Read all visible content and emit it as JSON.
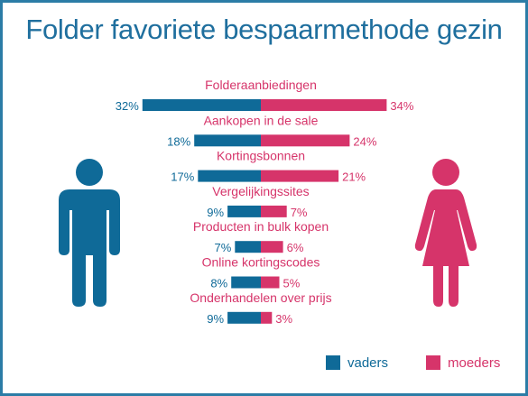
{
  "title": "Folder favoriete bespaarmethode gezin",
  "colors": {
    "vaders": "#0f6a98",
    "moeders": "#d6346a",
    "border": "#2b7ca6",
    "title": "#1f6f9e"
  },
  "chart_data": {
    "type": "bar",
    "title": "Folder favoriete bespaarmethode gezin",
    "categories": [
      "Folderaanbiedingen",
      "Aankopen in de sale",
      "Kortingsbonnen",
      "Vergelijkingssites",
      "Producten in bulk kopen",
      "Online kortingscodes",
      "Onderhandelen over prijs"
    ],
    "series": [
      {
        "name": "vaders",
        "values": [
          32,
          18,
          17,
          9,
          7,
          8,
          9
        ],
        "labels": [
          "32%",
          "18%",
          "17%",
          "9%",
          "7%",
          "8%",
          "9%"
        ]
      },
      {
        "name": "moeders",
        "values": [
          34,
          24,
          21,
          7,
          6,
          5,
          3
        ],
        "labels": [
          "34%",
          "24%",
          "21%",
          "7%",
          "6%",
          "5%",
          "3%"
        ]
      }
    ],
    "unit": "%",
    "legend": "bottom-right"
  },
  "legend": {
    "vaders": "vaders",
    "moeders": "moeders"
  },
  "icons": {
    "male": "man-icon",
    "female": "woman-icon"
  }
}
